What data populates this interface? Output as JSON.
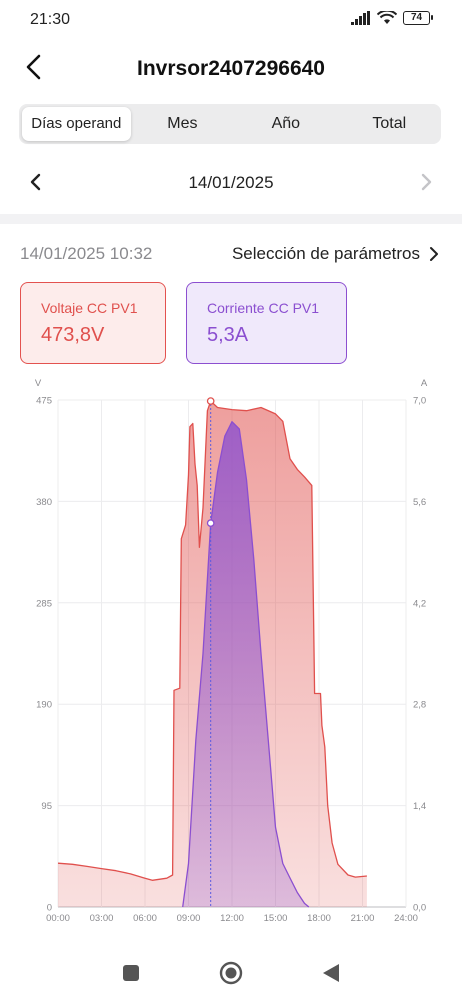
{
  "status_bar": {
    "time": "21:30",
    "battery": "74"
  },
  "header": {
    "title": "Invrsor2407296640"
  },
  "tabs": [
    {
      "label": "Días operand",
      "active": true
    },
    {
      "label": "Mes",
      "active": false
    },
    {
      "label": "Año",
      "active": false
    },
    {
      "label": "Total",
      "active": false
    }
  ],
  "date_nav": {
    "date": "14/01/2025"
  },
  "readout": {
    "timestamp": "14/01/2025 10:32",
    "param_select_label": "Selección de parámetros"
  },
  "cards": {
    "voltage": {
      "title": "Voltaje CC PV1",
      "value": "473,8V",
      "color": "#e0504d"
    },
    "current": {
      "title": "Corriente CC PV1",
      "value": "5,3A",
      "color": "#8b4fd0"
    }
  },
  "chart_data": {
    "type": "area",
    "left_unit": "V",
    "right_unit": "A",
    "x_ticks": [
      "00:00",
      "03:00",
      "06:00",
      "09:00",
      "12:00",
      "15:00",
      "18:00",
      "21:00",
      "24:00"
    ],
    "x_range_hours": [
      0,
      24
    ],
    "left_ticks": [
      "0",
      "95",
      "190",
      "285",
      "380",
      "475"
    ],
    "left_range": [
      0,
      475
    ],
    "right_ticks": [
      "0,0",
      "1,4",
      "2,8",
      "4,2",
      "5,6",
      "7,0"
    ],
    "right_range": [
      0,
      7.0
    ],
    "cursor_hour": 10.53,
    "series": [
      {
        "name": "Voltaje CC PV1",
        "axis": "left",
        "color": "#e0504d",
        "points": [
          [
            0,
            41
          ],
          [
            1,
            40
          ],
          [
            2,
            38
          ],
          [
            3,
            36
          ],
          [
            4,
            34
          ],
          [
            5,
            31
          ],
          [
            6,
            27
          ],
          [
            6.5,
            25
          ],
          [
            7.5,
            27
          ],
          [
            7.9,
            30
          ],
          [
            8.0,
            203
          ],
          [
            8.4,
            205
          ],
          [
            8.5,
            345
          ],
          [
            8.8,
            358
          ],
          [
            9.0,
            405
          ],
          [
            9.1,
            450
          ],
          [
            9.3,
            453
          ],
          [
            9.45,
            415
          ],
          [
            9.6,
            395
          ],
          [
            9.75,
            337
          ],
          [
            10.0,
            374
          ],
          [
            10.3,
            465
          ],
          [
            10.53,
            474
          ],
          [
            11,
            468
          ],
          [
            12,
            466
          ],
          [
            13,
            465
          ],
          [
            14,
            468
          ],
          [
            15,
            462
          ],
          [
            15.5,
            455
          ],
          [
            16,
            420
          ],
          [
            16.5,
            410
          ],
          [
            17,
            403
          ],
          [
            17.5,
            395
          ],
          [
            17.7,
            200
          ],
          [
            18.1,
            200
          ],
          [
            18.2,
            170
          ],
          [
            18.4,
            150
          ],
          [
            18.6,
            95
          ],
          [
            18.9,
            60
          ],
          [
            19.3,
            40
          ],
          [
            20.0,
            30
          ],
          [
            20.5,
            28
          ],
          [
            21.3,
            29
          ]
        ]
      },
      {
        "name": "Corriente CC PV1",
        "axis": "right",
        "color": "#8b4fd0",
        "points": [
          [
            8.6,
            0.0
          ],
          [
            9.0,
            0.6
          ],
          [
            9.5,
            2.3
          ],
          [
            10.0,
            3.5
          ],
          [
            10.53,
            5.3
          ],
          [
            11.0,
            6.0
          ],
          [
            11.5,
            6.5
          ],
          [
            12.0,
            6.7
          ],
          [
            12.5,
            6.6
          ],
          [
            13.0,
            5.9
          ],
          [
            13.5,
            4.8
          ],
          [
            14.0,
            3.5
          ],
          [
            14.5,
            2.3
          ],
          [
            15.0,
            1.1
          ],
          [
            15.5,
            0.6
          ],
          [
            16.0,
            0.4
          ],
          [
            16.5,
            0.2
          ],
          [
            17.0,
            0.05
          ],
          [
            17.3,
            0.0
          ]
        ]
      }
    ]
  }
}
